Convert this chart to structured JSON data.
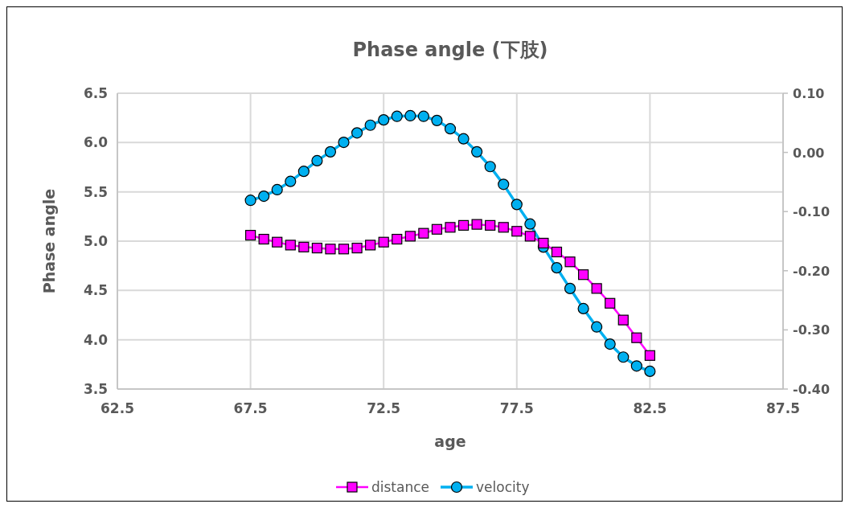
{
  "chart_data": {
    "type": "line",
    "title": "Phase angle (下肢)",
    "xlabel": "age",
    "ylabel": "Phase angle",
    "x": [
      67.5,
      68,
      68.5,
      69,
      69.5,
      70,
      70.5,
      71,
      71.5,
      72,
      72.5,
      73,
      73.5,
      74,
      74.5,
      75,
      75.5,
      76,
      76.5,
      77,
      77.5,
      78,
      78.5,
      79,
      79.5,
      80,
      80.5,
      81,
      81.5,
      82,
      82.5
    ],
    "series": [
      {
        "name": "distance",
        "color": "#ff00ff",
        "marker": "square",
        "values": [
          5.06,
          5.02,
          4.99,
          4.96,
          4.94,
          4.93,
          4.92,
          4.92,
          4.93,
          4.96,
          4.99,
          5.02,
          5.05,
          5.08,
          5.12,
          5.14,
          5.16,
          5.17,
          5.16,
          5.14,
          5.1,
          5.05,
          4.98,
          4.89,
          4.79,
          4.66,
          4.52,
          4.37,
          4.2,
          4.02,
          3.84
        ]
      },
      {
        "name": "velocity",
        "color": "#00b0f0",
        "marker": "circle",
        "axis": "y2",
        "values": [
          -0.081,
          -0.074,
          -0.063,
          -0.049,
          -0.032,
          -0.014,
          0.001,
          0.017,
          0.033,
          0.046,
          0.055,
          0.061,
          0.062,
          0.061,
          0.054,
          0.04,
          0.023,
          0.001,
          -0.024,
          -0.054,
          -0.088,
          -0.121,
          -0.16,
          -0.195,
          -0.23,
          -0.264,
          -0.295,
          -0.324,
          -0.346,
          -0.361,
          -0.37
        ]
      }
    ],
    "xlim": [
      62.5,
      87.5
    ],
    "xticks": [
      {
        "value": 62.5,
        "label": "62.5"
      },
      {
        "value": 67.5,
        "label": "67.5"
      },
      {
        "value": 72.5,
        "label": "72.5"
      },
      {
        "value": 77.5,
        "label": "77.5"
      },
      {
        "value": 82.5,
        "label": "82.5"
      },
      {
        "value": 87.5,
        "label": "87.5"
      }
    ],
    "ylim": [
      3.5,
      6.5
    ],
    "yticks": [
      {
        "value": 3.5,
        "label": "3.5"
      },
      {
        "value": 4,
        "label": "4.0"
      },
      {
        "value": 4.5,
        "label": "4.5"
      },
      {
        "value": 5,
        "label": "5.0"
      },
      {
        "value": 5.5,
        "label": "5.5"
      },
      {
        "value": 6,
        "label": "6.0"
      },
      {
        "value": 6.5,
        "label": "6.5"
      }
    ],
    "y2lim": [
      -0.4,
      0.1
    ],
    "y2ticks": [
      {
        "value": -0.4,
        "label": "-0.40"
      },
      {
        "value": -0.3,
        "label": "-0.30"
      },
      {
        "value": -0.2,
        "label": "-0.20"
      },
      {
        "value": -0.1,
        "label": "-0.10"
      },
      {
        "value": 0,
        "label": "0.00"
      },
      {
        "value": 0.1,
        "label": "0.10"
      }
    ],
    "grid": true,
    "legend": "bottom",
    "line_style": "solid"
  }
}
